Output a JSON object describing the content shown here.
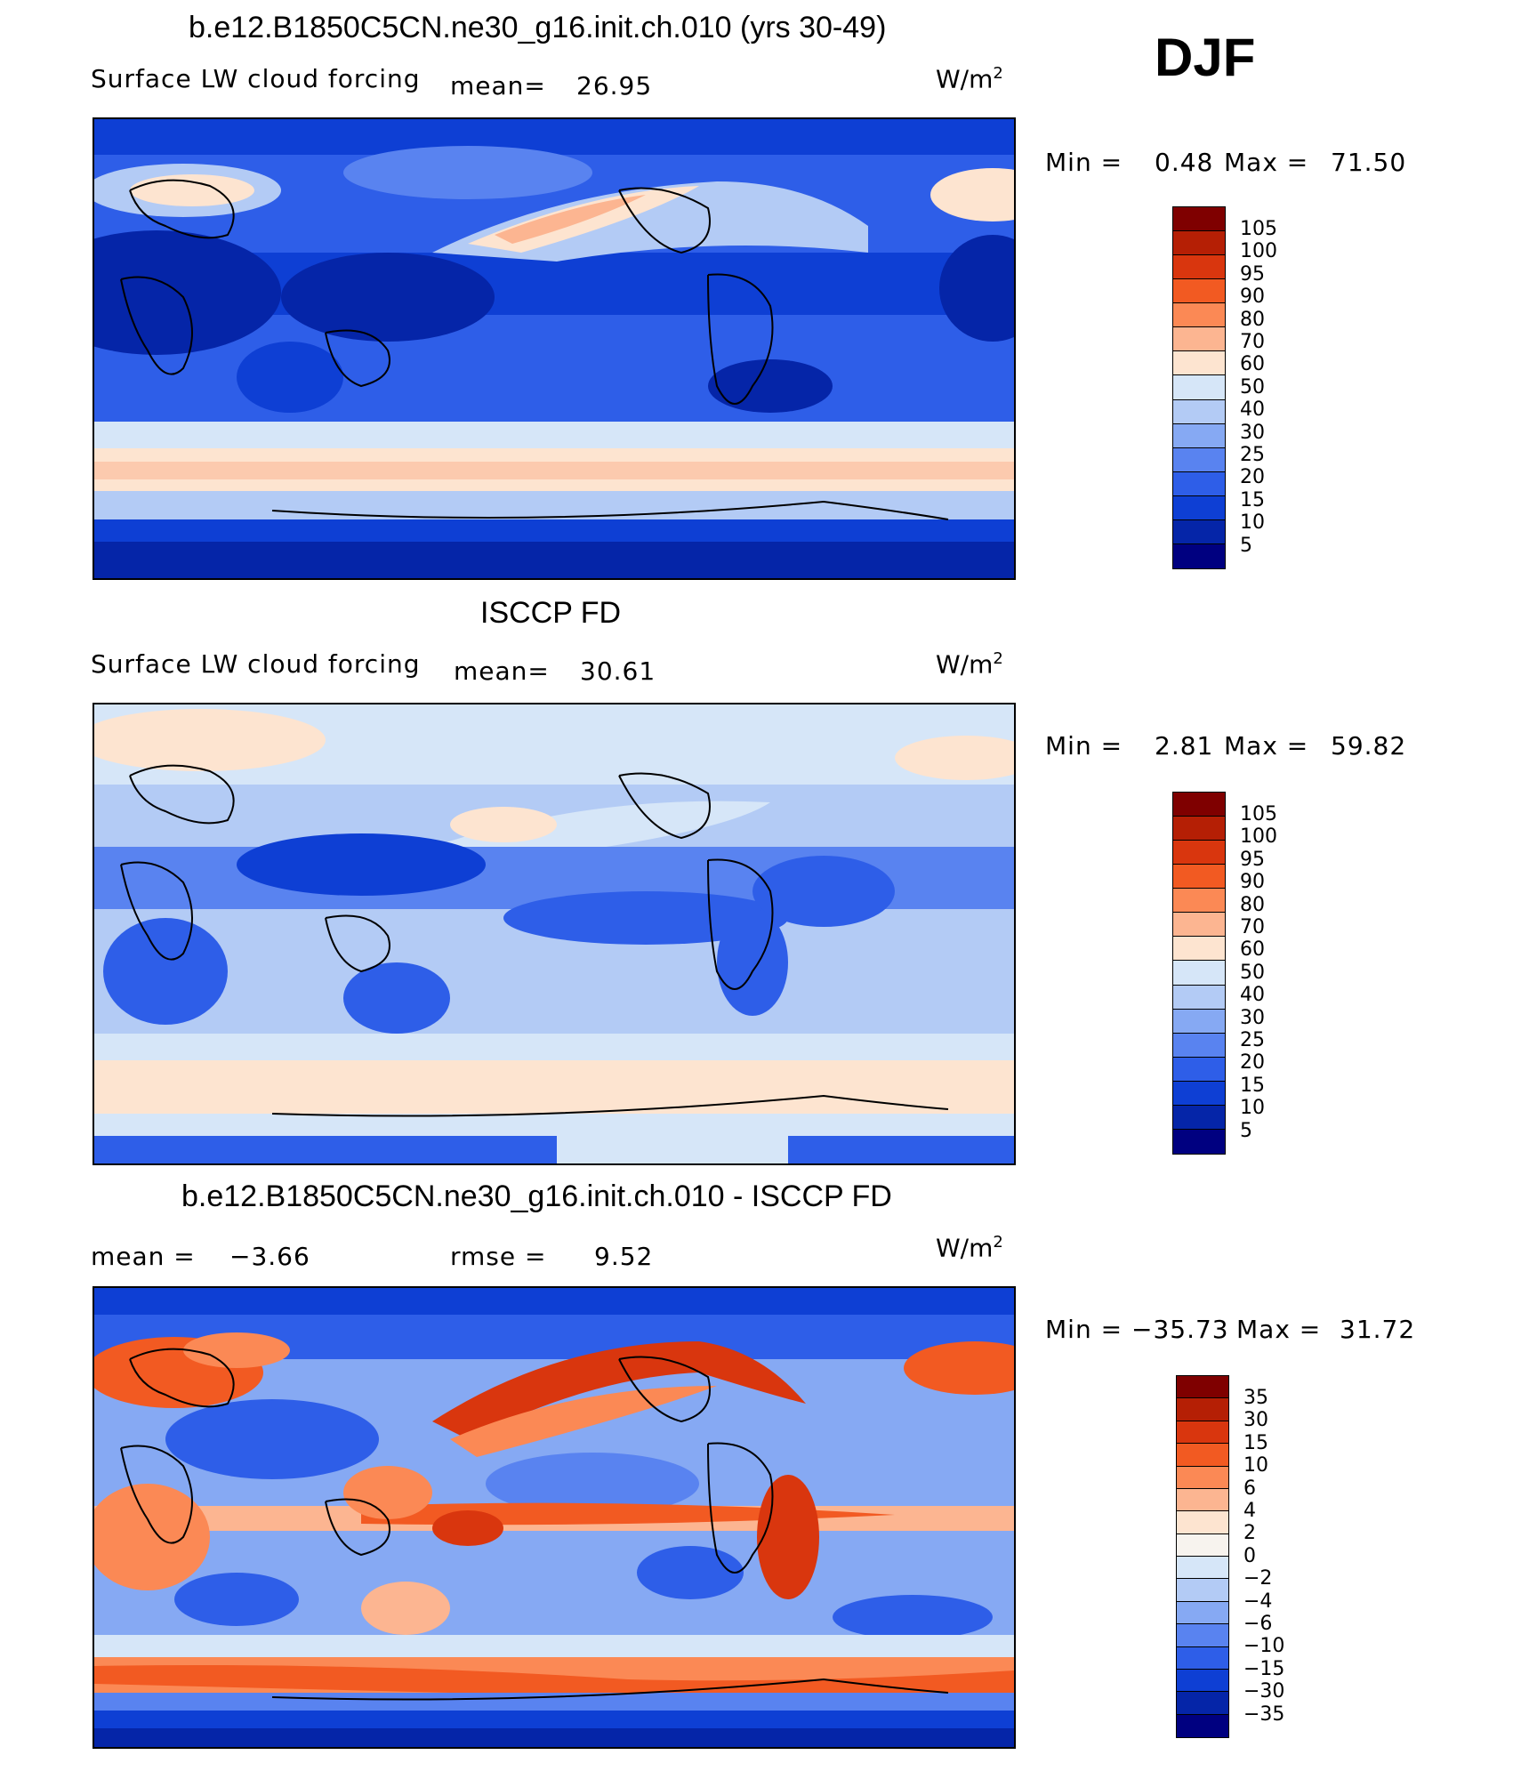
{
  "season": "DJF",
  "panels": [
    {
      "title": "b.e12.B1850C5CN.ne30_g16.init.ch.010 (yrs 30-49)",
      "variable": "Surface LW cloud forcing",
      "mean_label": "mean=",
      "mean_value": "26.95",
      "units_base": "W/m",
      "units_exp": "2",
      "min_label": "Min =",
      "min_value": "0.48",
      "max_label": "Max =",
      "max_value": "71.50",
      "colorbar_labels": [
        "105",
        "100",
        "95",
        "90",
        "80",
        "70",
        "60",
        "50",
        "40",
        "30",
        "25",
        "20",
        "15",
        "10",
        "5"
      ],
      "colorbar_colors": [
        "#7f0000",
        "#b51f05",
        "#d9360e",
        "#f25a22",
        "#fb8955",
        "#fcb591",
        "#fde4d0",
        "#d6e6f8",
        "#b3cbf5",
        "#86a9f3",
        "#5983f0",
        "#2e5ee8",
        "#0e3fd4",
        "#0525a8",
        "#000080"
      ]
    },
    {
      "title": "ISCCP FD",
      "variable": "Surface LW cloud forcing",
      "mean_label": "mean=",
      "mean_value": "30.61",
      "units_base": "W/m",
      "units_exp": "2",
      "min_label": "Min =",
      "min_value": "2.81",
      "max_label": "Max =",
      "max_value": "59.82",
      "colorbar_labels": [
        "105",
        "100",
        "95",
        "90",
        "80",
        "70",
        "60",
        "50",
        "40",
        "30",
        "25",
        "20",
        "15",
        "10",
        "5"
      ],
      "colorbar_colors": [
        "#7f0000",
        "#b51f05",
        "#d9360e",
        "#f25a22",
        "#fb8955",
        "#fcb591",
        "#fde4d0",
        "#d6e6f8",
        "#b3cbf5",
        "#86a9f3",
        "#5983f0",
        "#2e5ee8",
        "#0e3fd4",
        "#0525a8",
        "#000080"
      ]
    },
    {
      "title": "b.e12.B1850C5CN.ne30_g16.init.ch.010 - ISCCP FD",
      "mean_label": "mean =",
      "mean_value": "−3.66",
      "rmse_label": "rmse =",
      "rmse_value": "9.52",
      "units_base": "W/m",
      "units_exp": "2",
      "min_label": "Min =",
      "min_value": "−35.73",
      "max_label": "Max =",
      "max_value": "31.72",
      "colorbar_labels": [
        "35",
        "30",
        "15",
        "10",
        "6",
        "4",
        "2",
        "0",
        "−2",
        "−4",
        "−6",
        "−10",
        "−15",
        "−30",
        "−35"
      ],
      "colorbar_colors": [
        "#7f0000",
        "#b51f05",
        "#d9360e",
        "#f25a22",
        "#fb8955",
        "#fcb591",
        "#fde4d0",
        "#f7f3ee",
        "#d6e6f8",
        "#b3cbf5",
        "#86a9f3",
        "#5983f0",
        "#2e5ee8",
        "#0e3fd4",
        "#0525a8",
        "#000080"
      ]
    }
  ]
}
